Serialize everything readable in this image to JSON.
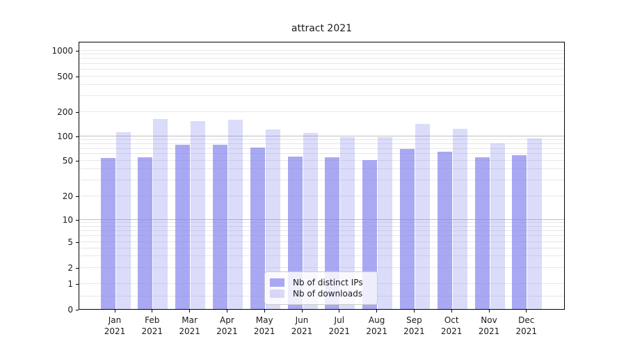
{
  "title": "attract 2021",
  "chart_data": {
    "type": "bar",
    "title": "attract 2021",
    "categories": [
      "Jan 2021",
      "Feb 2021",
      "Mar 2021",
      "Apr 2021",
      "May 2021",
      "Jun 2021",
      "Jul 2021",
      "Aug 2021",
      "Sep 2021",
      "Oct 2021",
      "Nov 2021",
      "Dec 2021"
    ],
    "series": [
      {
        "name": "Nb of distinct IPs",
        "color": "#8888ee",
        "alpha": 0.72,
        "values": [
          53,
          54,
          77,
          77,
          71,
          55,
          54,
          50,
          69,
          64,
          54,
          57
        ]
      },
      {
        "name": "Nb of downloads",
        "color": "#8888ee",
        "alpha": 0.3,
        "values": [
          111,
          160,
          152,
          157,
          119,
          108,
          97,
          97,
          140,
          122,
          80,
          92
        ]
      }
    ],
    "yscale": "symlog",
    "ylim": [
      0,
      1100
    ],
    "yticks": [
      0,
      1,
      2,
      5,
      10,
      20,
      50,
      100,
      200,
      500,
      1000
    ],
    "xlabel": "",
    "ylabel": "",
    "grid": "both",
    "legend_position": "inside lower-center"
  },
  "colors": {
    "spine": "#000000",
    "grid_major": "#bfbfbf",
    "grid_minor": "#e7e7e7",
    "text": "#1a1a1a",
    "legend_border": "#cccccc",
    "legend_bg": "rgba(255,255,255,0.8)"
  }
}
